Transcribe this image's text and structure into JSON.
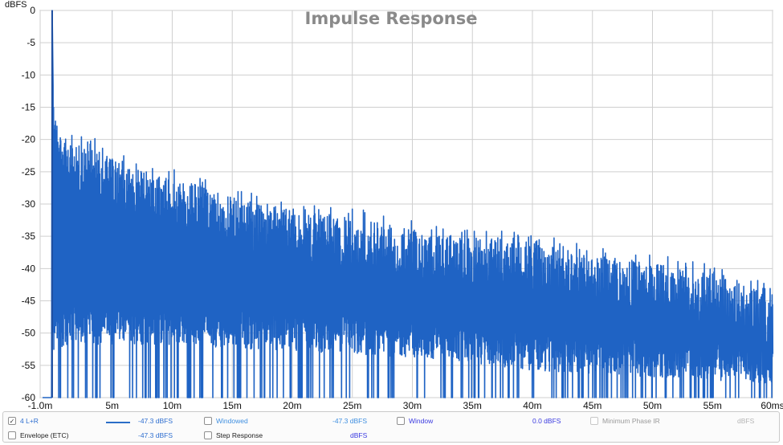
{
  "chart_data": {
    "type": "line",
    "title": "Impulse Response",
    "ylabel": "dBFS",
    "xlabel": "",
    "x_unit": "ms",
    "xlim": [
      -1.0,
      60
    ],
    "ylim": [
      -60,
      0
    ],
    "grid": true,
    "x_ticks": [
      "-1.0m",
      "5m",
      "10m",
      "15m",
      "20m",
      "25m",
      "30m",
      "35m",
      "40m",
      "45m",
      "50m",
      "55m",
      "60ms"
    ],
    "x_tick_values": [
      -1,
      5,
      10,
      15,
      20,
      25,
      30,
      35,
      40,
      45,
      50,
      55,
      60
    ],
    "y_ticks": [
      "0",
      "-5",
      "-10",
      "-15",
      "-20",
      "-25",
      "-30",
      "-35",
      "-40",
      "-45",
      "-50",
      "-55",
      "-60"
    ],
    "y_tick_values": [
      0,
      -5,
      -10,
      -15,
      -20,
      -25,
      -30,
      -35,
      -40,
      -45,
      -50,
      -55,
      -60
    ],
    "series": [
      {
        "name": "4 L+R",
        "color": "#1f63c4",
        "peak": {
          "x": 0.0,
          "y": 0
        },
        "envelope": {
          "x": [
            0,
            0.2,
            0.5,
            1,
            2,
            3,
            4,
            6,
            8,
            10,
            12,
            15,
            20,
            25,
            30,
            35,
            40,
            45,
            50,
            55,
            60
          ],
          "y": [
            0,
            -16,
            -17,
            -19,
            -21,
            -20,
            -22,
            -24,
            -25,
            -26,
            -27,
            -29,
            -31,
            -32,
            -34,
            -35,
            -36,
            -38,
            -39,
            -41,
            -44
          ]
        },
        "floor": {
          "x": [
            0,
            1,
            5,
            10,
            20,
            30,
            40,
            50,
            60
          ],
          "y": [
            -52,
            -50,
            -50,
            -50,
            -51,
            -52,
            -54,
            -55,
            -56
          ]
        },
        "marker": {
          "x": 0.0,
          "color": "#cc2222"
        }
      }
    ]
  },
  "legend": {
    "row1": [
      {
        "label": "4 L+R",
        "checked": true,
        "value": "-47.3 dBFS",
        "label_color": "#2f6fd0",
        "value_color": "#2f6fd0"
      },
      {
        "label": "Windowed",
        "checked": false,
        "value": "-47.3 dBFS",
        "label_color": "#3f8fe0",
        "value_color": "#3f8fe0"
      },
      {
        "label": "Window",
        "checked": false,
        "value": "0.0 dBFS",
        "label_color": "#3a3ae0",
        "value_color": "#3a3ae0"
      },
      {
        "label": "Minimum Phase IR",
        "checked": false,
        "value": "dBFS",
        "label_color": "#9a9a9a",
        "value_color": "#b5b5b5"
      }
    ],
    "row2": [
      {
        "label": "Envelope (ETC)",
        "checked": false,
        "value": "-47.3 dBFS",
        "label_color": "#222222",
        "value_color": "#2f6fd0"
      },
      {
        "label": "Step Response",
        "checked": false,
        "value": "dBFS",
        "label_color": "#222222",
        "value_color": "#3a3ae0"
      }
    ],
    "check_mark": "✓"
  }
}
